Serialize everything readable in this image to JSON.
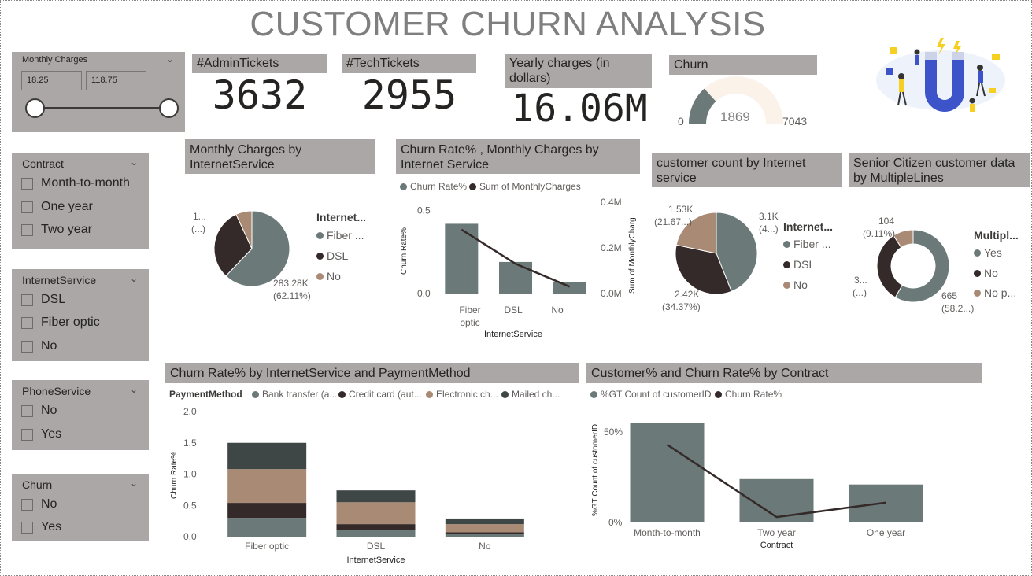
{
  "title": "CUSTOMER CHURN ANALYSIS",
  "colors": {
    "slate": "#6b7979",
    "dark": "#342a29",
    "tan": "#a98a74",
    "charcoal": "#3f4646",
    "panel": "#aba7a6",
    "gaugeTrack": "#fbf2ea"
  },
  "slicers": {
    "monthly": {
      "title": "Monthly Charges",
      "min": "18.25",
      "max": "118.75"
    },
    "contract": {
      "title": "Contract",
      "options": [
        "Month-to-month",
        "One year",
        "Two year"
      ]
    },
    "internet": {
      "title": "InternetService",
      "options": [
        "DSL",
        "Fiber optic",
        "No"
      ]
    },
    "phone": {
      "title": "PhoneService",
      "options": [
        "No",
        "Yes"
      ]
    },
    "churn": {
      "title": "Churn",
      "options": [
        "No",
        "Yes"
      ]
    }
  },
  "kpis": {
    "admin": {
      "label": "#AdminTickets",
      "value": "3632"
    },
    "tech": {
      "label": "#TechTickets",
      "value": "2955"
    },
    "yearly": {
      "label": "Yearly charges (in dollars)",
      "value": "16.06M"
    }
  },
  "gauge": {
    "label": "Churn",
    "min": "0",
    "max": "7043",
    "value_label": "1869",
    "value": 1869,
    "total": 7043
  },
  "pie_monthly": {
    "title": "Monthly Charges by InternetService",
    "legend_title": "Internet...",
    "legend": [
      "Fiber ...",
      "DSL",
      "No"
    ],
    "label_big": "283.28K",
    "label_big_pct": "(62.11%)",
    "label_small": "1...",
    "label_small_pct": "(...)"
  },
  "churn_rate_chart": {
    "title": "Churn Rate% , Monthly Charges by Internet Service",
    "legend": [
      "Churn Rate%",
      "Sum of MonthlyCharges"
    ],
    "ylabel": "Churn Rate%",
    "y2label": "Sum of MonthlyCharg...",
    "xlabel": "InternetService",
    "yticks": [
      "0.5",
      "0.0"
    ],
    "y2ticks": [
      "0.4M",
      "0.2M",
      "0.0M"
    ],
    "cats": [
      "Fiber",
      "optic",
      "DSL",
      "No"
    ]
  },
  "pie_count": {
    "title": "customer count by Internet service",
    "legend_title": "Internet...",
    "legend": [
      "Fiber ...",
      "DSL",
      "No"
    ],
    "label_a": "1.53K",
    "label_a_pct": "(21.67...)",
    "label_b": "3.1K",
    "label_b_pct": "(4...)",
    "label_c": "2.42K",
    "label_c_pct": "(34.37%)"
  },
  "donut_senior": {
    "title": "Senior Citizen customer data by MultipleLines",
    "legend_title": "Multipl...",
    "legend": [
      "Yes",
      "No",
      "No p..."
    ],
    "label_a": "104",
    "label_a_pct": "(9.11%)",
    "label_b": "3...",
    "label_b_pct": "(...)",
    "label_c": "665",
    "label_c_pct": "(58.2...)"
  },
  "stacked": {
    "title": "Churn Rate% by InternetService and PaymentMethod",
    "legend_title": "PaymentMethod",
    "legend": [
      "Bank transfer (a...",
      "Credit card (aut...",
      "Electronic ch...",
      "Mailed ch..."
    ],
    "ylabel": "Churn Rate%",
    "xlabel": "InternetService",
    "yticks": [
      "2.0",
      "1.5",
      "1.0",
      "0.5",
      "0.0"
    ],
    "cats": [
      "Fiber optic",
      "DSL",
      "No"
    ]
  },
  "contract_chart": {
    "title": "Customer% and Churn Rate% by Contract",
    "legend": [
      "%GT Count of customerID",
      "Churn Rate%"
    ],
    "ylabel": "%GT Count of customerID",
    "xlabel": "Contract",
    "yticks": [
      "50%",
      "0%"
    ],
    "cats": [
      "Month-to-month",
      "Two year",
      "One year"
    ]
  },
  "chart_data": [
    {
      "type": "pie",
      "title": "Monthly Charges by InternetService",
      "categories": [
        "Fiber optic",
        "DSL",
        "No"
      ],
      "values": [
        62.11,
        31.0,
        6.89
      ]
    },
    {
      "type": "bar",
      "title": "Churn Rate% , Monthly Charges by Internet Service",
      "categories": [
        "Fiber optic",
        "DSL",
        "No"
      ],
      "series": [
        {
          "name": "Churn Rate%",
          "values": [
            0.42,
            0.19,
            0.07
          ]
        },
        {
          "name": "Sum of MonthlyCharges",
          "values": [
            0.28,
            0.13,
            0.03
          ]
        }
      ],
      "ylim": [
        0,
        0.55
      ],
      "y2lim": [
        0,
        0.4
      ]
    },
    {
      "type": "pie",
      "title": "customer count by Internet service",
      "categories": [
        "Fiber optic",
        "DSL",
        "No"
      ],
      "values": [
        3.1,
        2.42,
        1.53
      ],
      "percents": [
        43.96,
        34.37,
        21.67
      ]
    },
    {
      "type": "pie",
      "title": "Senior Citizen customer data by MultipleLines",
      "categories": [
        "Yes",
        "No",
        "No phone service"
      ],
      "values": [
        665,
        373,
        104
      ],
      "percents": [
        58.2,
        32.7,
        9.11
      ]
    },
    {
      "type": "bar",
      "title": "Churn Rate% by InternetService and PaymentMethod",
      "categories": [
        "Fiber optic",
        "DSL",
        "No"
      ],
      "series": [
        {
          "name": "Bank transfer (automatic)",
          "values": [
            0.3,
            0.1,
            0.04
          ]
        },
        {
          "name": "Credit card (automatic)",
          "values": [
            0.24,
            0.1,
            0.03
          ]
        },
        {
          "name": "Electronic check",
          "values": [
            0.54,
            0.35,
            0.13
          ]
        },
        {
          "name": "Mailed check",
          "values": [
            0.42,
            0.19,
            0.09
          ]
        }
      ],
      "ylim": [
        0,
        2.0
      ]
    },
    {
      "type": "bar",
      "title": "Customer% and Churn Rate% by Contract",
      "categories": [
        "Month-to-month",
        "Two year",
        "One year"
      ],
      "series": [
        {
          "name": "%GT Count of customerID",
          "values": [
            55,
            24,
            21
          ]
        },
        {
          "name": "Churn Rate%",
          "values": [
            43,
            3,
            11
          ]
        }
      ],
      "ylim": [
        0,
        60
      ]
    }
  ]
}
